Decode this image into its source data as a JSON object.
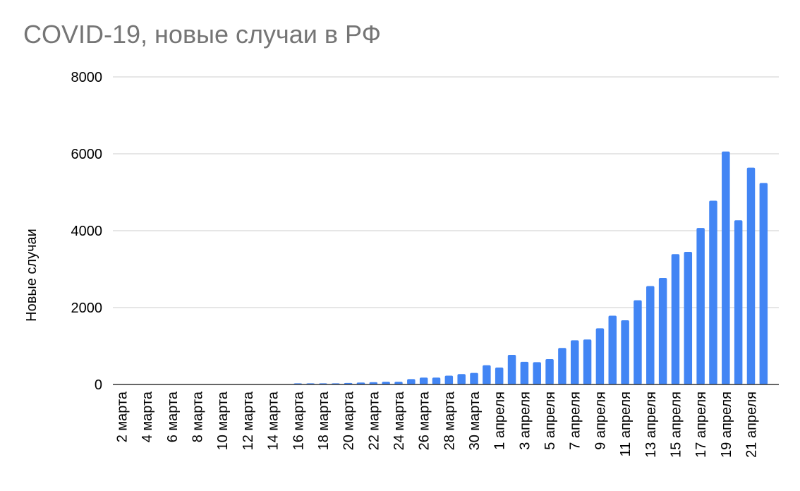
{
  "chart_data": {
    "type": "bar",
    "title": "COVID-19, новые случаи в РФ",
    "xlabel": "",
    "ylabel": "Новые случаи",
    "ylim": [
      0,
      8000
    ],
    "yticks": [
      "0",
      "2000",
      "4000",
      "6000",
      "8000"
    ],
    "grid": true,
    "bar_color": "#4285f4",
    "categories": [
      "2 марта",
      "3 марта",
      "4 марта",
      "5 марта",
      "6 марта",
      "7 марта",
      "8 марта",
      "9 марта",
      "10 марта",
      "11 марта",
      "12 марта",
      "13 марта",
      "14 марта",
      "15 марта",
      "16 марта",
      "17 марта",
      "18 марта",
      "19 марта",
      "20 марта",
      "21 марта",
      "22 марта",
      "23 марта",
      "24 марта",
      "25 марта",
      "26 марта",
      "27 марта",
      "28 марта",
      "29 марта",
      "30 марта",
      "31 марта",
      "1 апреля",
      "2 апреля",
      "3 апреля",
      "4 апреля",
      "5 апреля",
      "6 апреля",
      "7 апреля",
      "8 апреля",
      "9 апреля",
      "10 апреля",
      "11 апреля",
      "12 апреля",
      "13 апреля",
      "14 апреля",
      "15 апреля",
      "16 апреля",
      "17 апреля",
      "18 апреля",
      "19 апреля",
      "20 апреля",
      "21 апреля",
      "22 апреля"
    ],
    "values": [
      0,
      0,
      0,
      0,
      0,
      0,
      0,
      0,
      0,
      0,
      0,
      0,
      0,
      0,
      30,
      30,
      30,
      30,
      40,
      50,
      60,
      70,
      70,
      140,
      180,
      180,
      230,
      270,
      300,
      500,
      440,
      770,
      590,
      580,
      660,
      950,
      1150,
      1170,
      1460,
      1790,
      1670,
      2190,
      2560,
      2770,
      3390,
      3450,
      4070,
      4780,
      6060,
      4270,
      5640,
      5240
    ],
    "xtick_labels": [
      "2 марта",
      "4 марта",
      "6 марта",
      "8 марта",
      "10 марта",
      "12 марта",
      "14 марта",
      "16 марта",
      "18 марта",
      "20 марта",
      "22 марта",
      "24 марта",
      "26 марта",
      "28 марта",
      "30 марта",
      "1 апреля",
      "3 апреля",
      "5 апреля",
      "7 апреля",
      "9 апреля",
      "11 апреля",
      "13 апреля",
      "15 апреля",
      "17 апреля",
      "19 апреля",
      "21 апреля"
    ]
  }
}
